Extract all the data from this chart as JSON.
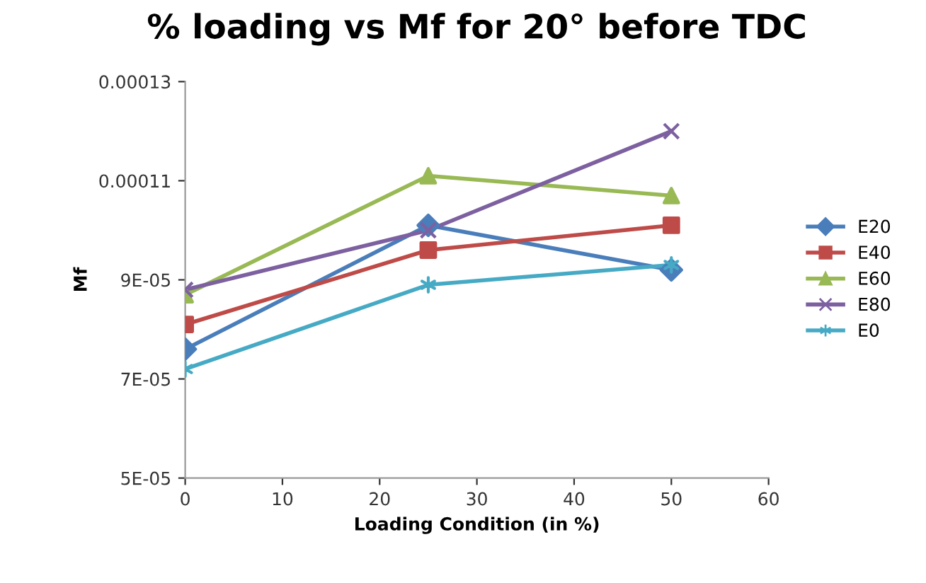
{
  "chart_data": {
    "type": "line",
    "title": "% loading vs Mf for 20° before TDC",
    "xlabel": "Loading Condition (in %)",
    "ylabel": "Mf",
    "x": [
      0,
      25,
      50
    ],
    "series": [
      {
        "name": "E20",
        "color": "#4a7ebb",
        "marker": "diamond",
        "values": [
          7.6e-05,
          0.000101,
          9.2e-05
        ]
      },
      {
        "name": "E40",
        "color": "#be4b48",
        "marker": "square",
        "values": [
          8.1e-05,
          9.6e-05,
          0.000101
        ]
      },
      {
        "name": "E60",
        "color": "#98b954",
        "marker": "triangle",
        "values": [
          8.7e-05,
          0.000111,
          0.000107
        ]
      },
      {
        "name": "E80",
        "color": "#7d60a0",
        "marker": "cross",
        "values": [
          8.8e-05,
          0.0001,
          0.00012
        ]
      },
      {
        "name": "E0",
        "color": "#46aac5",
        "marker": "cross",
        "values": [
          7.2e-05,
          8.9e-05,
          9.3e-05
        ]
      }
    ],
    "xlim": [
      0,
      60
    ],
    "xticks": [
      0,
      10,
      20,
      30,
      40,
      50,
      60
    ],
    "ylim": [
      5e-05,
      0.00013
    ],
    "yticks": [
      {
        "value": 5e-05,
        "label": "5E-05"
      },
      {
        "value": 7e-05,
        "label": "7E-05"
      },
      {
        "value": 9e-05,
        "label": "9E-05"
      },
      {
        "value": 0.00011,
        "label": "0.00011"
      },
      {
        "value": 0.00013,
        "label": "0.00013"
      }
    ],
    "grid": false,
    "legend": "right",
    "line_style": "solid"
  }
}
